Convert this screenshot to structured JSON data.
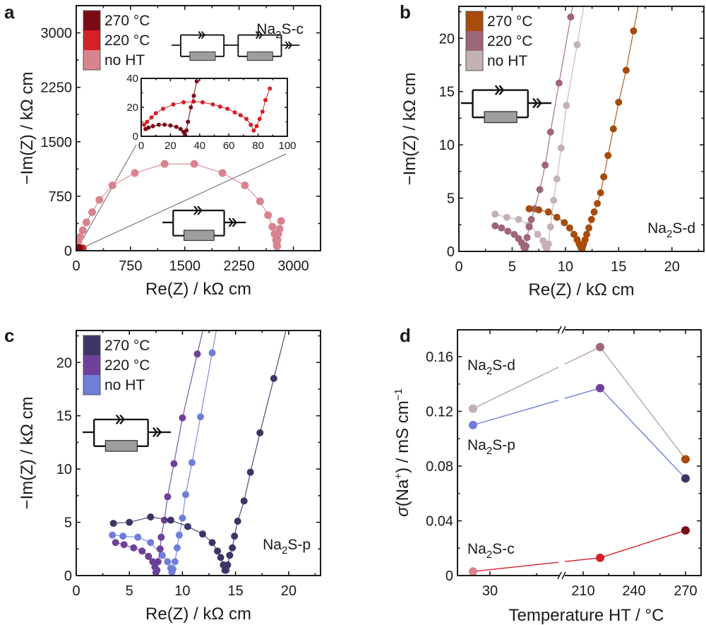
{
  "figure": {
    "panels": [
      {
        "id": "a",
        "letter": "a"
      },
      {
        "id": "b",
        "letter": "b"
      },
      {
        "id": "c",
        "letter": "c"
      },
      {
        "id": "d",
        "letter": "d"
      }
    ]
  },
  "chart_data": [
    {
      "panel": "a",
      "type": "scatter",
      "title": "",
      "sample_label": "Na2S-c",
      "xlabel": "Re(Z) / kΩ cm",
      "ylabel": "−Im(Z) / kΩ cm",
      "xlim": [
        0,
        3375
      ],
      "ylim": [
        0,
        3375
      ],
      "xticks": [
        0,
        750,
        1500,
        2250,
        3000
      ],
      "yticks": [
        0,
        750,
        1500,
        2250,
        3000
      ],
      "legend": {
        "position": "top-left",
        "entries": [
          "270 °C",
          "220 °C",
          "no HT"
        ]
      },
      "series": [
        {
          "name": "270 °C",
          "color": "#7a0a14",
          "x": [
            3,
            5,
            8,
            12,
            16,
            20,
            24,
            27,
            29,
            30,
            31,
            32,
            34,
            36,
            38
          ],
          "y": [
            5,
            6,
            7,
            8,
            8,
            7.5,
            6.5,
            5,
            3,
            1,
            4,
            10,
            20,
            28,
            38
          ]
        },
        {
          "name": "220 °C",
          "color": "#d42027",
          "x": [
            2,
            4,
            7,
            10,
            15,
            22,
            29,
            36,
            42,
            49,
            54,
            59,
            64,
            68,
            72,
            75,
            77,
            79,
            81,
            83,
            85,
            88
          ],
          "y": [
            8,
            10,
            13,
            16,
            19,
            22,
            23.5,
            24,
            23.5,
            22,
            20.5,
            19,
            16.5,
            14.5,
            12,
            8,
            4,
            7,
            12,
            17,
            25,
            33
          ]
        },
        {
          "name": "no HT",
          "color": "#d8848f",
          "x": [
            15,
            30,
            55,
            90,
            140,
            220,
            320,
            500,
            810,
            1220,
            1630,
            2020,
            2330,
            2540,
            2650,
            2710,
            2740,
            2760,
            2770,
            2775,
            2780,
            2790,
            2810,
            2830
          ],
          "y": [
            60,
            130,
            190,
            280,
            390,
            530,
            700,
            900,
            1070,
            1195,
            1195,
            1070,
            900,
            680,
            490,
            330,
            230,
            150,
            90,
            60,
            150,
            230,
            300,
            410
          ]
        }
      ],
      "inset": {
        "xlim": [
          0,
          100
        ],
        "ylim": [
          0,
          40
        ],
        "xticks": [
          0,
          20,
          40,
          60,
          80,
          100
        ],
        "yticks": [
          0,
          20,
          40
        ]
      }
    },
    {
      "panel": "b",
      "type": "scatter",
      "title": "",
      "sample_label": "Na2S-d",
      "xlabel": "Re(Z) / kΩ cm",
      "ylabel": "−Im(Z) / kΩ cm",
      "xlim": [
        0,
        23
      ],
      "ylim": [
        0,
        23
      ],
      "xticks": [
        0,
        5,
        10,
        15,
        20
      ],
      "yticks": [
        0,
        5,
        10,
        15,
        20
      ],
      "legend": {
        "position": "top-left",
        "entries": [
          "270 °C",
          "220 °C",
          "no HT"
        ]
      },
      "series": [
        {
          "name": "270 °C",
          "color": "#a84b0c",
          "x": [
            6.6,
            7.5,
            8.4,
            9.2,
            9.9,
            10.4,
            10.8,
            11.1,
            11.3,
            11.45,
            11.55,
            11.6,
            11.7,
            11.85,
            12.0,
            12.2,
            12.45,
            12.7,
            13.0,
            13.3,
            13.6,
            14.0,
            14.5,
            15.0,
            15.7,
            16.4
          ],
          "y": [
            4.0,
            3.9,
            3.7,
            3.2,
            2.7,
            2.2,
            1.6,
            1.1,
            0.7,
            0.4,
            0.2,
            0.4,
            0.7,
            1.1,
            1.6,
            2.2,
            3.0,
            3.7,
            4.5,
            5.5,
            7.0,
            9.0,
            11.5,
            14.0,
            17.0,
            20.7
          ]
        },
        {
          "name": "220 °C",
          "color": "#9e6677",
          "x": [
            3.4,
            4.0,
            4.6,
            5.2,
            5.6,
            5.9,
            6.1,
            6.2,
            6.3,
            6.4,
            6.6,
            6.8,
            7.1,
            7.6,
            8.1,
            8.6,
            9.4,
            10.5
          ],
          "y": [
            2.4,
            2.2,
            1.9,
            1.6,
            1.2,
            0.8,
            0.4,
            0.2,
            0.5,
            1.3,
            2.3,
            3.0,
            4.0,
            5.8,
            8.1,
            11.2,
            15.8,
            22.0
          ]
        },
        {
          "name": "no HT",
          "color": "#c4b1b3",
          "x": [
            3.4,
            4.5,
            5.6,
            6.6,
            7.4,
            7.9,
            8.1,
            8.25,
            8.4,
            8.6,
            8.9,
            9.2,
            9.6,
            10.1,
            11.1
          ],
          "y": [
            3.5,
            3.2,
            3.0,
            2.5,
            1.6,
            1.0,
            0.5,
            0.3,
            0.7,
            2.3,
            4.8,
            6.8,
            9.7,
            13.7,
            19.4
          ]
        }
      ]
    },
    {
      "panel": "c",
      "type": "scatter",
      "title": "",
      "sample_label": "Na2S-p",
      "xlabel": "Re(Z) / kΩ cm",
      "ylabel": "−Im(Z) / kΩ cm",
      "xlim": [
        0,
        23
      ],
      "ylim": [
        0,
        23
      ],
      "xticks": [
        0,
        5,
        10,
        15,
        20
      ],
      "yticks": [
        0,
        5,
        10,
        15,
        20
      ],
      "legend": {
        "position": "top-left",
        "entries": [
          "270 °C",
          "220 °C",
          "no HT"
        ]
      },
      "series": [
        {
          "name": "270 °C",
          "color": "#3d3566",
          "x": [
            3.5,
            5.0,
            7.0,
            8.9,
            10.5,
            11.9,
            12.8,
            13.3,
            13.6,
            13.85,
            14.0,
            14.1,
            14.25,
            14.45,
            14.7,
            14.9,
            15.2,
            15.8,
            16.4,
            17.3,
            18.6
          ],
          "y": [
            4.9,
            5.0,
            5.5,
            5.2,
            4.6,
            3.9,
            3.1,
            2.3,
            1.7,
            1.0,
            0.5,
            0.5,
            1.0,
            1.9,
            2.6,
            3.7,
            5.1,
            7.0,
            9.7,
            13.4,
            18.5
          ]
        },
        {
          "name": "220 °C",
          "color": "#6d409a",
          "x": [
            3.7,
            4.5,
            5.4,
            6.2,
            6.8,
            7.2,
            7.4,
            7.5,
            7.6,
            7.7,
            7.9,
            8.0,
            8.3,
            8.6,
            9.2,
            10.0,
            11.4
          ],
          "y": [
            3.1,
            2.9,
            2.6,
            2.3,
            1.8,
            1.3,
            0.8,
            0.3,
            0.5,
            1.3,
            2.5,
            3.6,
            5.2,
            7.4,
            10.5,
            14.8,
            20.8
          ]
        },
        {
          "name": "no HT",
          "color": "#6f7ed8",
          "x": [
            3.4,
            4.4,
            5.8,
            7.0,
            8.1,
            8.6,
            8.9,
            9.0,
            9.1,
            9.3,
            9.5,
            9.7,
            10.0,
            10.3,
            10.9,
            11.7,
            12.8
          ],
          "y": [
            3.8,
            3.7,
            3.6,
            3.1,
            1.9,
            1.3,
            0.7,
            0.3,
            0.6,
            1.3,
            2.6,
            3.8,
            5.4,
            7.6,
            10.6,
            14.9,
            20.9
          ]
        }
      ]
    },
    {
      "panel": "d",
      "type": "line",
      "title": "",
      "xlabel": "Temperature HT / °C",
      "ylabel": "σ(Na⁺) / mS cm⁻¹",
      "ylim": [
        0,
        0.18
      ],
      "yticks": [
        0,
        0.04,
        0.08,
        0.12,
        0.16
      ],
      "ytick_labels": [
        "0",
        "0.04",
        "0.08",
        "0.12",
        "0.16"
      ],
      "xticks": [
        30,
        210,
        240,
        270
      ],
      "x_axis_break": true,
      "x": [
        "no HT",
        220,
        270
      ],
      "series": [
        {
          "name": "Na2S-d",
          "line_color": "#b7a3a5",
          "point_colors": [
            "#bfb0b2",
            "#9e6677",
            "#a84b0c"
          ],
          "values": [
            0.122,
            0.167,
            0.085
          ]
        },
        {
          "name": "Na2S-p",
          "line_color": "#6f7ed8",
          "point_colors": [
            "#6f7ed8",
            "#6d409a",
            "#3d3566"
          ],
          "values": [
            0.11,
            0.137,
            0.071
          ]
        },
        {
          "name": "Na2S-c",
          "line_color": "#d42027",
          "point_colors": [
            "#d8848f",
            "#d42027",
            "#7a0a14"
          ],
          "values": [
            0.003,
            0.013,
            0.033
          ]
        }
      ],
      "annotations": [
        "Na2S-d",
        "Na2S-p",
        "Na2S-c"
      ]
    }
  ]
}
